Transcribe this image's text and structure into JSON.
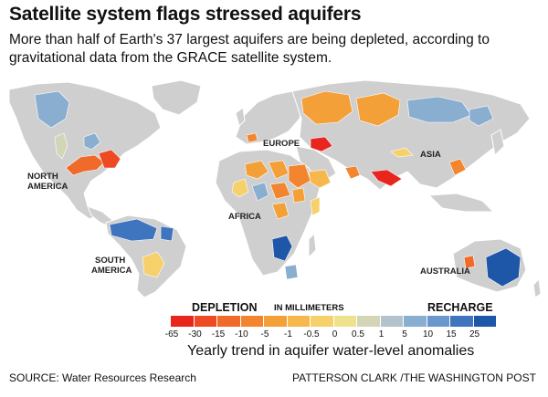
{
  "title": "Satellite system flags stressed aquifers",
  "subtitle": "More than half of Earth's 37 largest aquifers are being depleted, according to gravitational data from the GRACE satellite system.",
  "map_labels": {
    "north_america_1": "NORTH",
    "north_america_2": "AMERICA",
    "south_america_1": "SOUTH",
    "south_america_2": "AMERICA",
    "europe": "EUROPE",
    "africa": "AFRICA",
    "asia": "ASIA",
    "australia": "AUSTRALIA"
  },
  "legend": {
    "left_label": "DEPLETION",
    "middle_label": "IN MILLIMETERS",
    "right_label": "RECHARGE",
    "ticks": [
      "-65",
      "-30",
      "-15",
      "-10",
      "-5",
      "-1",
      "-0.5",
      "0",
      "0.5",
      "1",
      "5",
      "10",
      "15",
      "25"
    ],
    "colors": [
      "#e8261e",
      "#ee4a24",
      "#f06a2a",
      "#f2852e",
      "#f4a039",
      "#f6b84d",
      "#f6d06a",
      "#efe28f",
      "#d3d6b6",
      "#b2c3cd",
      "#8aaed0",
      "#6a97cc",
      "#3f75bf",
      "#1e56a8"
    ]
  },
  "caption": "Yearly trend in aquifer water-level anomalies",
  "source": "SOURCE: Water Resources Research",
  "credit": "PATTERSON CLARK /THE WASHINGTON POST",
  "colors": {
    "land": "#cfcfcf",
    "ocean": "#ffffff",
    "outline": "#ffffff"
  }
}
